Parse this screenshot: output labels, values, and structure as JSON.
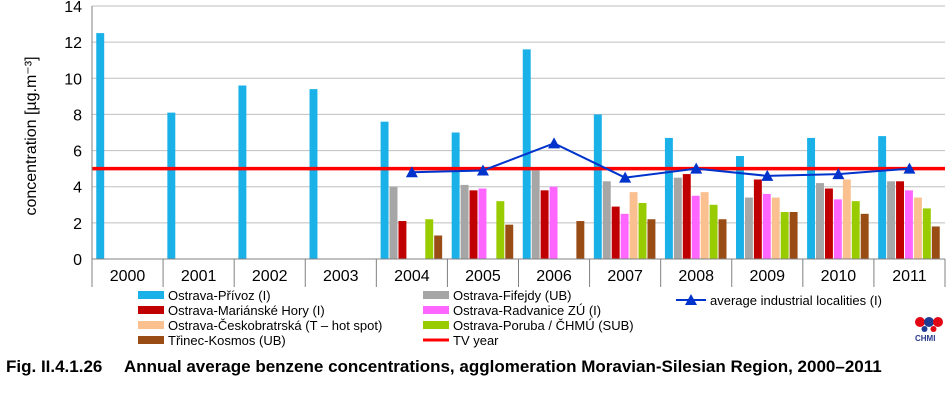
{
  "chart_data": {
    "type": "bar",
    "ylabel": "concentration [µg.m⁻³]",
    "ylim": [
      0,
      14
    ],
    "yticks": [
      0,
      2,
      4,
      6,
      8,
      10,
      12,
      14
    ],
    "categories": [
      "2000",
      "2001",
      "2002",
      "2003",
      "2004",
      "2005",
      "2006",
      "2007",
      "2008",
      "2009",
      "2010",
      "2011"
    ],
    "series": [
      {
        "name": "Ostrava-Přívoz (I)",
        "color": "#19b1e8",
        "values": [
          12.5,
          8.1,
          9.6,
          9.4,
          7.6,
          7.0,
          11.6,
          8.0,
          6.7,
          5.7,
          6.7,
          6.8
        ]
      },
      {
        "name": "Ostrava-Fifejdy (UB)",
        "color": "#a6a6a6",
        "values": [
          null,
          null,
          null,
          null,
          4.0,
          4.1,
          4.9,
          4.3,
          4.5,
          3.4,
          4.2,
          4.3
        ]
      },
      {
        "name": "Ostrava-Mariánské Hory (I)",
        "color": "#c00000",
        "values": [
          null,
          null,
          null,
          null,
          2.1,
          3.8,
          3.8,
          2.9,
          4.7,
          4.4,
          3.9,
          4.3
        ]
      },
      {
        "name": "Ostrava-Radvanice ZÚ (I)",
        "color": "#ff66ff",
        "values": [
          null,
          null,
          null,
          null,
          null,
          3.9,
          4.0,
          2.5,
          3.5,
          3.6,
          3.3,
          3.8
        ]
      },
      {
        "name": "Ostrava-Českobratrská (T – hot spot)",
        "color": "#fac090",
        "values": [
          null,
          null,
          null,
          null,
          null,
          null,
          null,
          3.7,
          3.7,
          3.4,
          4.4,
          3.4
        ]
      },
      {
        "name": "Ostrava-Poruba / ČHMÚ (SUB)",
        "color": "#99cc00",
        "values": [
          null,
          null,
          null,
          null,
          2.2,
          3.2,
          null,
          3.1,
          3.0,
          2.6,
          3.2,
          2.8
        ]
      },
      {
        "name": "Třinec-Kosmos (UB)",
        "color": "#994c14",
        "values": [
          null,
          null,
          null,
          null,
          1.3,
          1.9,
          2.1,
          2.2,
          2.2,
          2.6,
          2.5,
          1.8
        ]
      }
    ],
    "line": {
      "name": "average industrial localities (I)",
      "color": "#0033cc",
      "values": [
        null,
        null,
        null,
        null,
        4.8,
        4.9,
        6.4,
        4.5,
        5.0,
        4.6,
        4.7,
        5.0
      ]
    },
    "reference": {
      "name": "TV year",
      "color": "#ff0000",
      "value": 5
    },
    "legend": {
      "col1": [
        "Ostrava-Přívoz (I)",
        "Ostrava-Mariánské Hory (I)",
        "Ostrava-Českobratrská (T – hot spot)",
        "Třinec-Kosmos (UB)"
      ],
      "col2": [
        "Ostrava-Fifejdy (UB)",
        "Ostrava-Radvanice ZÚ (I)",
        "Ostrava-Poruba / ČHMÚ (SUB)",
        "TV year"
      ],
      "col3": [
        "average industrial localities (I)"
      ]
    }
  },
  "caption": {
    "number": "Fig. II.4.1.26",
    "text": "Annual average benzene concentrations, agglomeration Moravian-Silesian Region, 2000–2011"
  },
  "logo": {
    "text": "CHMI",
    "colors": [
      "#e30613",
      "#1f3c94"
    ]
  }
}
